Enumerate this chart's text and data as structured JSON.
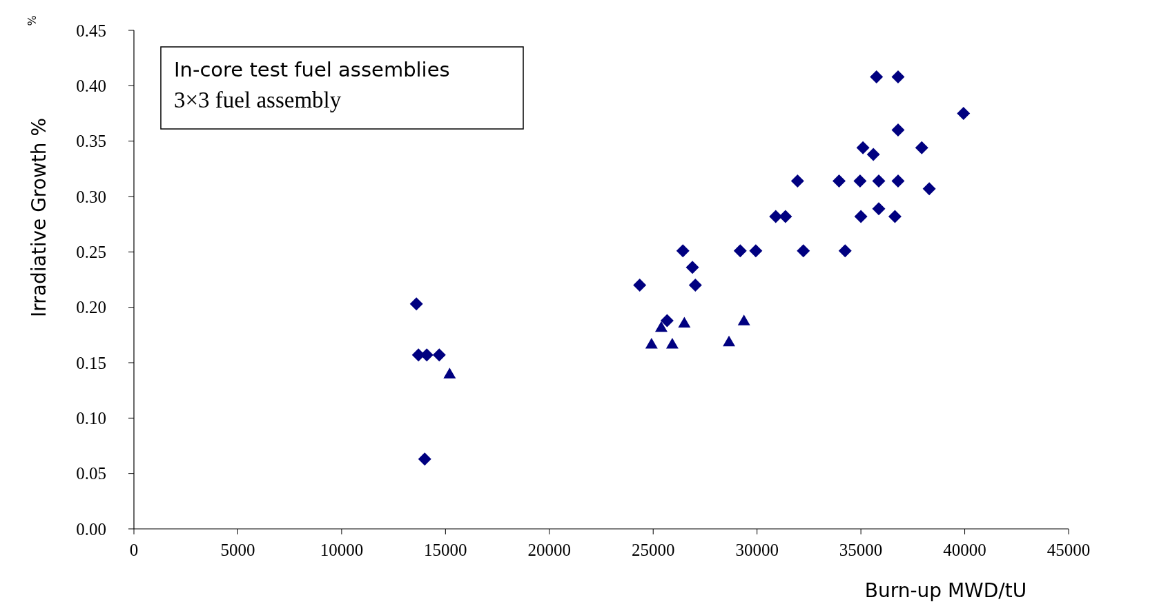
{
  "chart_data": {
    "type": "scatter",
    "xlabel": "Burn-up MWD/tU",
    "ylabel": "Irradiative Growth %",
    "annotations": [
      "In-core test fuel assemblies",
      "3×3 fuel assembly",
      "%"
    ],
    "xlim": [
      0,
      45000
    ],
    "xticks": [
      0,
      5000,
      10000,
      15000,
      20000,
      25000,
      30000,
      35000,
      40000,
      45000
    ],
    "ylim": [
      0,
      0.45
    ],
    "yticks": [
      {
        "value": 0,
        "label": "0.00"
      },
      {
        "value": 0.05,
        "label": "0.05"
      },
      {
        "value": 0.1,
        "label": "0.10"
      },
      {
        "value": 0.15,
        "label": "0.15"
      },
      {
        "value": 0.2,
        "label": "0.20"
      },
      {
        "value": 0.25,
        "label": "0.25"
      },
      {
        "value": 0.3,
        "label": "0.30"
      },
      {
        "value": 0.35,
        "label": "0.35"
      },
      {
        "value": 0.4,
        "label": "0.40"
      },
      {
        "value": 0.45,
        "label": "0.45"
      }
    ],
    "grid": false,
    "series": [
      {
        "color": "#000080",
        "marker": "diamond",
        "x": [
          13600,
          13700,
          14100,
          14700,
          14000,
          24350,
          25670,
          26430,
          26890,
          27030,
          29190,
          29940,
          30900,
          31370,
          31950,
          32230,
          33950,
          34240,
          34960,
          35000,
          35100,
          35600,
          35750,
          35860,
          35860,
          36640,
          36790,
          36790,
          36790,
          37930,
          38290,
          39940
        ],
        "values": [
          0.203,
          0.157,
          0.157,
          0.157,
          0.063,
          0.22,
          0.188,
          0.251,
          0.236,
          0.22,
          0.251,
          0.251,
          0.282,
          0.282,
          0.314,
          0.251,
          0.314,
          0.251,
          0.314,
          0.282,
          0.344,
          0.338,
          0.408,
          0.314,
          0.289,
          0.282,
          0.408,
          0.36,
          0.314,
          0.344,
          0.307,
          0.375
        ]
      },
      {
        "color": "#000080",
        "marker": "triangle",
        "x": [
          15200,
          24920,
          25390,
          25920,
          26500,
          28650,
          29370
        ],
        "values": [
          0.139,
          0.166,
          0.181,
          0.166,
          0.185,
          0.168,
          0.187
        ]
      }
    ]
  }
}
